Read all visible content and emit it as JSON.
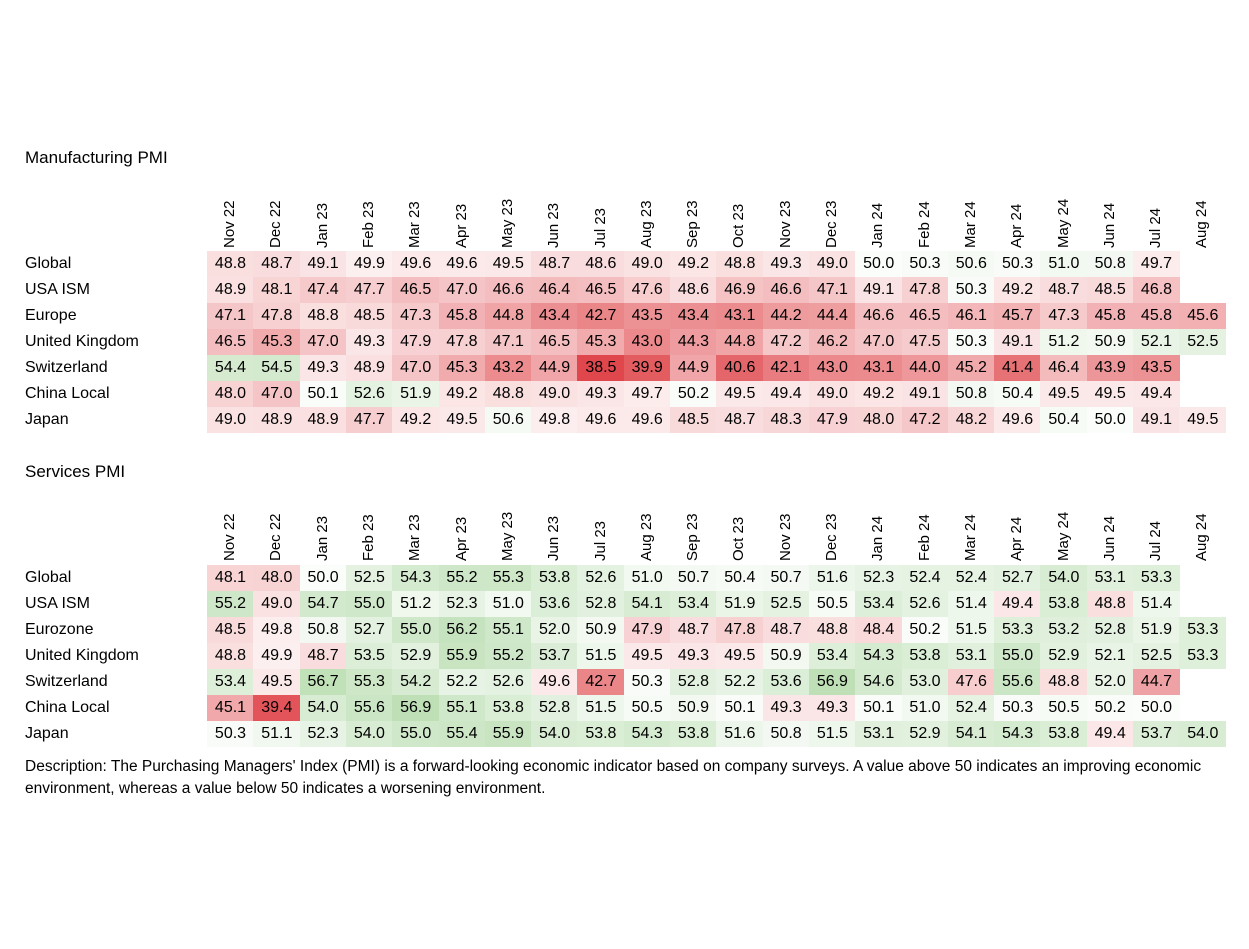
{
  "description": "Description: The Purchasing Managers' Index (PMI) is a forward-looking economic indicator based on company surveys. A value above 50 indicates an improving economic environment, whereas a value below 50 indicates a worsening environment.",
  "colors": {
    "negative": "#e0474c",
    "positive": "#62b34f",
    "neutral": "#ffffff"
  },
  "chart_data": [
    {
      "type": "heatmap",
      "title": "Manufacturing PMI",
      "midpoint": 50,
      "columns": [
        "Nov 22",
        "Dec 22",
        "Jan 23",
        "Feb 23",
        "Mar 23",
        "Apr 23",
        "May 23",
        "Jun 23",
        "Jul 23",
        "Aug 23",
        "Sep 23",
        "Oct 23",
        "Nov 23",
        "Dec 23",
        "Jan 24",
        "Feb 24",
        "Mar 24",
        "Apr 24",
        "May 24",
        "Jun 24",
        "Jul 24",
        "Aug 24"
      ],
      "rows": [
        {
          "name": "Global",
          "values": [
            "48.8",
            "48.7",
            "49.1",
            "49.9",
            "49.6",
            "49.6",
            "49.5",
            "48.7",
            "48.6",
            "49.0",
            "49.2",
            "48.8",
            "49.3",
            "49.0",
            "50.0",
            "50.3",
            "50.6",
            "50.3",
            "51.0",
            "50.8",
            "49.7",
            ""
          ]
        },
        {
          "name": "USA ISM",
          "values": [
            "48.9",
            "48.1",
            "47.4",
            "47.7",
            "46.5",
            "47.0",
            "46.6",
            "46.4",
            "46.5",
            "47.6",
            "48.6",
            "46.9",
            "46.6",
            "47.1",
            "49.1",
            "47.8",
            "50.3",
            "49.2",
            "48.7",
            "48.5",
            "46.8",
            ""
          ]
        },
        {
          "name": "Europe",
          "values": [
            "47.1",
            "47.8",
            "48.8",
            "48.5",
            "47.3",
            "45.8",
            "44.8",
            "43.4",
            "42.7",
            "43.5",
            "43.4",
            "43.1",
            "44.2",
            "44.4",
            "46.6",
            "46.5",
            "46.1",
            "45.7",
            "47.3",
            "45.8",
            "45.8",
            "45.6"
          ]
        },
        {
          "name": "United Kingdom",
          "values": [
            "46.5",
            "45.3",
            "47.0",
            "49.3",
            "47.9",
            "47.8",
            "47.1",
            "46.5",
            "45.3",
            "43.0",
            "44.3",
            "44.8",
            "47.2",
            "46.2",
            "47.0",
            "47.5",
            "50.3",
            "49.1",
            "51.2",
            "50.9",
            "52.1",
            "52.5"
          ]
        },
        {
          "name": "Switzerland",
          "values": [
            "54.4",
            "54.5",
            "49.3",
            "48.9",
            "47.0",
            "45.3",
            "43.2",
            "44.9",
            "38.5",
            "39.9",
            "44.9",
            "40.6",
            "42.1",
            "43.0",
            "43.1",
            "44.0",
            "45.2",
            "41.4",
            "46.4",
            "43.9",
            "43.5",
            ""
          ]
        },
        {
          "name": "China Local",
          "values": [
            "48.0",
            "47.0",
            "50.1",
            "52.6",
            "51.9",
            "49.2",
            "48.8",
            "49.0",
            "49.3",
            "49.7",
            "50.2",
            "49.5",
            "49.4",
            "49.0",
            "49.2",
            "49.1",
            "50.8",
            "50.4",
            "49.5",
            "49.5",
            "49.4",
            ""
          ]
        },
        {
          "name": "Japan",
          "values": [
            "49.0",
            "48.9",
            "48.9",
            "47.7",
            "49.2",
            "49.5",
            "50.6",
            "49.8",
            "49.6",
            "49.6",
            "48.5",
            "48.7",
            "48.3",
            "47.9",
            "48.0",
            "47.2",
            "48.2",
            "49.6",
            "50.4",
            "50.0",
            "49.1",
            "49.5"
          ]
        }
      ]
    },
    {
      "type": "heatmap",
      "title": "Services PMI",
      "midpoint": 50,
      "columns": [
        "Nov 22",
        "Dec 22",
        "Jan 23",
        "Feb 23",
        "Mar 23",
        "Apr 23",
        "May 23",
        "Jun 23",
        "Jul 23",
        "Aug 23",
        "Sep 23",
        "Oct 23",
        "Nov 23",
        "Dec 23",
        "Jan 24",
        "Feb 24",
        "Mar 24",
        "Apr 24",
        "May 24",
        "Jun 24",
        "Jul 24",
        "Aug 24"
      ],
      "rows": [
        {
          "name": "Global",
          "values": [
            "48.1",
            "48.0",
            "50.0",
            "52.5",
            "54.3",
            "55.2",
            "55.3",
            "53.8",
            "52.6",
            "51.0",
            "50.7",
            "50.4",
            "50.7",
            "51.6",
            "52.3",
            "52.4",
            "52.4",
            "52.7",
            "54.0",
            "53.1",
            "53.3",
            ""
          ]
        },
        {
          "name": "USA ISM",
          "values": [
            "55.2",
            "49.0",
            "54.7",
            "55.0",
            "51.2",
            "52.3",
            "51.0",
            "53.6",
            "52.8",
            "54.1",
            "53.4",
            "51.9",
            "52.5",
            "50.5",
            "53.4",
            "52.6",
            "51.4",
            "49.4",
            "53.8",
            "48.8",
            "51.4",
            ""
          ]
        },
        {
          "name": "Eurozone",
          "values": [
            "48.5",
            "49.8",
            "50.8",
            "52.7",
            "55.0",
            "56.2",
            "55.1",
            "52.0",
            "50.9",
            "47.9",
            "48.7",
            "47.8",
            "48.7",
            "48.8",
            "48.4",
            "50.2",
            "51.5",
            "53.3",
            "53.2",
            "52.8",
            "51.9",
            "53.3"
          ]
        },
        {
          "name": "United Kingdom",
          "values": [
            "48.8",
            "49.9",
            "48.7",
            "53.5",
            "52.9",
            "55.9",
            "55.2",
            "53.7",
            "51.5",
            "49.5",
            "49.3",
            "49.5",
            "50.9",
            "53.4",
            "54.3",
            "53.8",
            "53.1",
            "55.0",
            "52.9",
            "52.1",
            "52.5",
            "53.3"
          ]
        },
        {
          "name": "Switzerland",
          "values": [
            "53.4",
            "49.5",
            "56.7",
            "55.3",
            "54.2",
            "52.2",
            "52.6",
            "49.6",
            "42.7",
            "50.3",
            "52.8",
            "52.2",
            "53.6",
            "56.9",
            "54.6",
            "53.0",
            "47.6",
            "55.6",
            "48.8",
            "52.0",
            "44.7",
            ""
          ]
        },
        {
          "name": "China Local",
          "values": [
            "45.1",
            "39.4",
            "54.0",
            "55.6",
            "56.9",
            "55.1",
            "53.8",
            "52.8",
            "51.5",
            "50.5",
            "50.9",
            "50.1",
            "49.3",
            "49.3",
            "50.1",
            "51.0",
            "52.4",
            "50.3",
            "50.5",
            "50.2",
            "50.0",
            ""
          ]
        },
        {
          "name": "Japan",
          "values": [
            "50.3",
            "51.1",
            "52.3",
            "54.0",
            "55.0",
            "55.4",
            "55.9",
            "54.0",
            "53.8",
            "54.3",
            "53.8",
            "51.6",
            "50.8",
            "51.5",
            "53.1",
            "52.9",
            "54.1",
            "54.3",
            "53.8",
            "49.4",
            "53.7",
            "54.0"
          ]
        }
      ]
    }
  ]
}
